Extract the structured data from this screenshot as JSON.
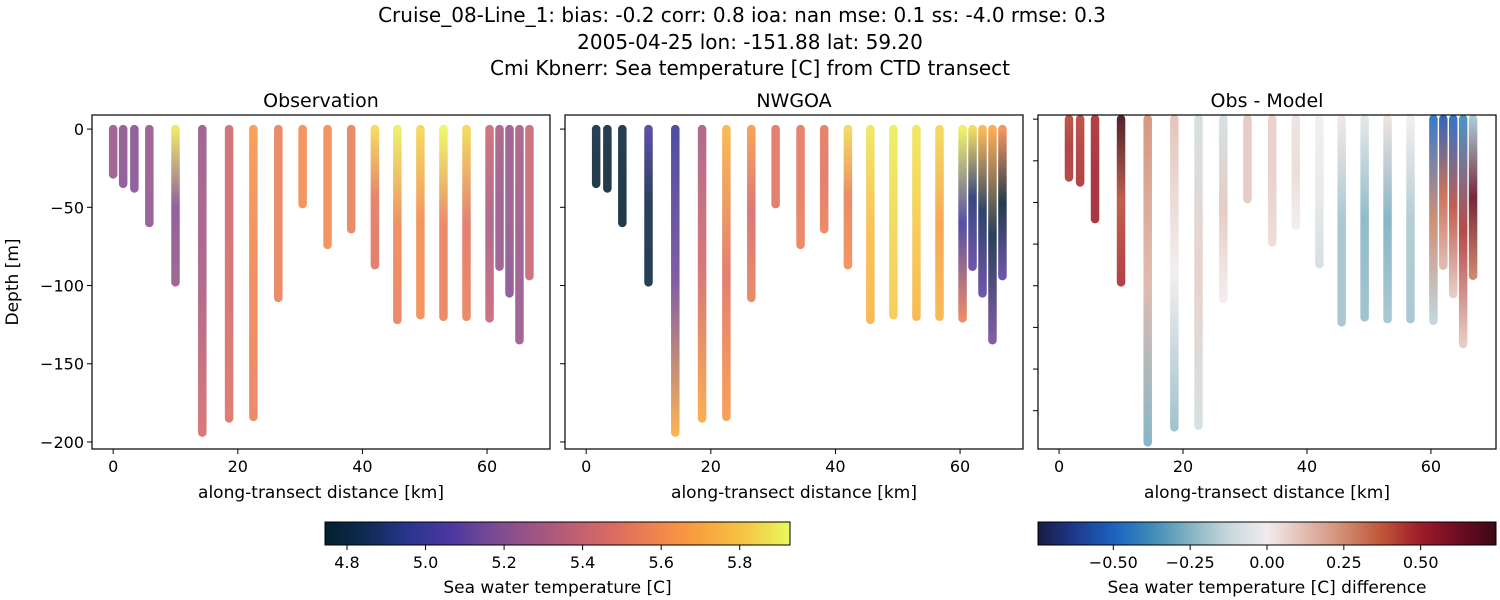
{
  "title_lines": [
    "Cruise_08-Line_1: bias: -0.2  corr: 0.8  ioa: nan  mse: 0.1  ss: -4.0  rmse: 0.3",
    "2005-04-25 lon: -151.88 lat: 59.20",
    "Cmi Kbnerr: Sea temperature [C] from CTD transect"
  ],
  "chart_data": [
    {
      "type": "scatter",
      "title": "Observation",
      "xlabel": "along-transect distance [km]",
      "ylabel": "Depth [m]",
      "xlim": [
        -3.4,
        70.1
      ],
      "ylim": [
        -204.5,
        9
      ],
      "xticks": [
        0,
        20,
        40,
        60
      ],
      "yticks": [
        0,
        -50,
        -100,
        -150,
        -200
      ],
      "show_ytick_labels": true,
      "field": "obs",
      "colormap": "thermal"
    },
    {
      "type": "scatter",
      "title": "NWGOA",
      "xlabel": "along-transect distance [km]",
      "ylabel": "",
      "xlim": [
        -3.4,
        70.1
      ],
      "ylim": [
        -204.5,
        9
      ],
      "xticks": [
        0,
        20,
        40,
        60
      ],
      "yticks": [
        0,
        -50,
        -100,
        -150,
        -200
      ],
      "show_ytick_labels": false,
      "field": "model",
      "colormap": "thermal"
    },
    {
      "type": "scatter",
      "title": "Obs - Model",
      "xlabel": "along-transect distance [km]",
      "ylabel": "",
      "xlim": [
        -3.4,
        70.5
      ],
      "ylim": [
        -198,
        2.5
      ],
      "xticks": [
        0,
        20,
        40,
        60
      ],
      "yticks": [
        0,
        -25,
        -50,
        -75,
        -100,
        -125,
        -150,
        -175
      ],
      "show_ytick_labels": false,
      "field": "diff",
      "colormap": "balance"
    }
  ],
  "stations": [
    {
      "x": 0.0,
      "depth": 29,
      "obs": [
        5.25,
        5.25,
        5.25
      ],
      "model": null
    },
    {
      "x": 1.6,
      "depth": 35,
      "obs": [
        5.22,
        5.22,
        5.2
      ],
      "model": [
        4.8,
        4.76,
        4.75
      ]
    },
    {
      "x": 3.4,
      "depth": 38,
      "obs": [
        5.2,
        5.2,
        5.2
      ],
      "model": [
        4.78,
        4.75,
        4.74
      ]
    },
    {
      "x": 5.8,
      "depth": 60,
      "obs": [
        5.25,
        5.25,
        5.22
      ],
      "model": [
        4.78,
        4.75,
        4.72
      ]
    },
    {
      "x": 10.0,
      "depth": 98,
      "obs": [
        5.88,
        5.2,
        5.25
      ],
      "model": [
        5.05,
        4.8,
        4.78
      ]
    },
    {
      "x": 14.3,
      "depth": 194,
      "obs": [
        5.25,
        5.3,
        5.45
      ],
      "model": [
        5.0,
        5.15,
        5.72
      ]
    },
    {
      "x": 18.6,
      "depth": 185,
      "obs": [
        5.42,
        5.45,
        5.48
      ],
      "model": [
        5.3,
        5.45,
        5.7
      ]
    },
    {
      "x": 22.5,
      "depth": 184,
      "obs": [
        5.65,
        5.58,
        5.55
      ],
      "model": [
        5.75,
        5.5,
        5.65
      ]
    },
    {
      "x": 26.5,
      "depth": 108,
      "obs": [
        5.55,
        5.55,
        5.55
      ],
      "model": [
        5.65,
        5.45,
        5.55
      ]
    },
    {
      "x": 30.4,
      "depth": 48,
      "obs": [
        5.6,
        5.6,
        5.6
      ],
      "model": [
        5.5,
        5.5,
        5.5
      ]
    },
    {
      "x": 34.4,
      "depth": 74,
      "obs": [
        5.6,
        5.6,
        5.6
      ],
      "model": [
        5.52,
        5.52,
        5.55
      ]
    },
    {
      "x": 38.2,
      "depth": 64,
      "obs": [
        5.55,
        5.55,
        5.55
      ],
      "model": [
        5.52,
        5.5,
        5.55
      ]
    },
    {
      "x": 42.0,
      "depth": 87,
      "obs": [
        5.85,
        5.52,
        5.5
      ],
      "model": [
        5.85,
        5.55,
        5.6
      ]
    },
    {
      "x": 45.6,
      "depth": 122,
      "obs": [
        5.9,
        5.58,
        5.55
      ],
      "model": [
        5.88,
        5.78,
        5.75
      ]
    },
    {
      "x": 49.3,
      "depth": 119,
      "obs": [
        5.85,
        5.6,
        5.6
      ],
      "model": [
        5.9,
        5.85,
        5.82
      ]
    },
    {
      "x": 53.0,
      "depth": 120,
      "obs": [
        5.92,
        5.55,
        5.55
      ],
      "model": [
        5.88,
        5.82,
        5.75
      ]
    },
    {
      "x": 56.7,
      "depth": 120,
      "obs": [
        5.85,
        5.5,
        5.55
      ],
      "model": [
        5.85,
        5.68,
        5.75
      ]
    },
    {
      "x": 60.4,
      "depth": 121,
      "obs": [
        5.42,
        5.3,
        5.4
      ],
      "model": [
        5.9,
        5.02,
        5.55
      ]
    },
    {
      "x": 62.0,
      "depth": 88,
      "obs": [
        5.3,
        5.25,
        5.25
      ],
      "model": [
        5.85,
        4.9,
        5.1
      ]
    },
    {
      "x": 63.6,
      "depth": 105,
      "obs": [
        5.25,
        5.25,
        5.2
      ],
      "model": [
        5.75,
        4.85,
        5.1
      ]
    },
    {
      "x": 65.2,
      "depth": 135,
      "obs": [
        5.3,
        5.25,
        5.25
      ],
      "model": [
        5.7,
        4.8,
        5.15
      ]
    },
    {
      "x": 66.8,
      "depth": 94,
      "obs": [
        5.4,
        5.4,
        5.4
      ],
      "model": [
        5.6,
        4.75,
        5.1
      ]
    }
  ],
  "colorbars": [
    {
      "label": "Sea water temperature [C]",
      "range": [
        4.744,
        5.928
      ],
      "ticks": [
        "4.8",
        "5.0",
        "5.2",
        "5.4",
        "5.6",
        "5.8"
      ],
      "colormap": "thermal"
    },
    {
      "label": "Sea water temperature [C] difference",
      "range": [
        -0.745,
        0.745
      ],
      "ticks": [
        "−0.50",
        "−0.25",
        "0.00",
        "0.25",
        "0.50"
      ],
      "colormap": "balance"
    }
  ],
  "colormaps": {
    "thermal": [
      "#04202f",
      "#0f2b55",
      "#2a3590",
      "#4c38a0",
      "#7a4b94",
      "#a05582",
      "#c35f72",
      "#df6e5d",
      "#f3884a",
      "#f9a53c",
      "#f5c846",
      "#e8fa5b"
    ],
    "balance": [
      "#181c43",
      "#1f3a8f",
      "#1b63c0",
      "#3e8cb8",
      "#84b3c2",
      "#c8d8dc",
      "#f1ecec",
      "#e0bcb0",
      "#d08c72",
      "#bf5639",
      "#a01b2a",
      "#6e0c23",
      "#3c0912"
    ]
  }
}
